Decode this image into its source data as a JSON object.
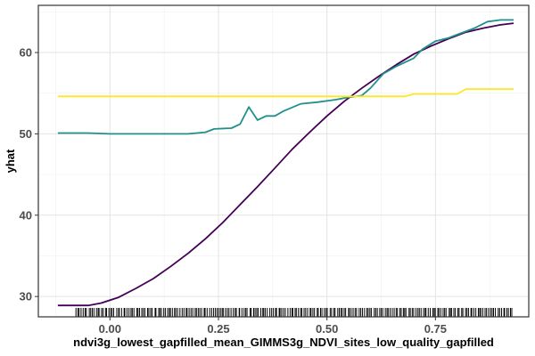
{
  "chart_data": {
    "type": "line",
    "title": "",
    "xlabel": "ndvi3g_lowest_gapfilled_mean_GIMMS3g_NDVI_sites_low_quality_gapfilled",
    "ylabel": "yhat",
    "xlim": [
      -0.165,
      0.965
    ],
    "ylim": [
      27.5,
      65.8
    ],
    "x_ticks": [
      0.0,
      0.25,
      0.5,
      0.75
    ],
    "x_tick_labels": [
      "0.00",
      "0.25",
      "0.50",
      "0.75"
    ],
    "y_ticks": [
      30,
      40,
      50,
      60
    ],
    "y_tick_labels": [
      "30",
      "40",
      "50",
      "60"
    ],
    "grid": true,
    "rug": true,
    "rug_range": [
      -0.08,
      0.93
    ],
    "series": [
      {
        "color": "#440154",
        "points": [
          [
            -0.12,
            28.9
          ],
          [
            -0.05,
            28.9
          ],
          [
            -0.02,
            29.2
          ],
          [
            0.02,
            29.9
          ],
          [
            0.06,
            31.0
          ],
          [
            0.1,
            32.2
          ],
          [
            0.14,
            33.7
          ],
          [
            0.18,
            35.3
          ],
          [
            0.22,
            37.1
          ],
          [
            0.26,
            39.1
          ],
          [
            0.3,
            41.3
          ],
          [
            0.34,
            43.5
          ],
          [
            0.38,
            45.8
          ],
          [
            0.42,
            48.1
          ],
          [
            0.46,
            50.2
          ],
          [
            0.5,
            52.2
          ],
          [
            0.54,
            54.0
          ],
          [
            0.58,
            55.6
          ],
          [
            0.62,
            57.1
          ],
          [
            0.66,
            58.5
          ],
          [
            0.7,
            59.8
          ],
          [
            0.74,
            60.8
          ],
          [
            0.78,
            61.7
          ],
          [
            0.82,
            62.5
          ],
          [
            0.86,
            63.0
          ],
          [
            0.9,
            63.4
          ],
          [
            0.93,
            63.6
          ]
        ]
      },
      {
        "color": "#21908C",
        "points": [
          [
            -0.12,
            50.1
          ],
          [
            -0.05,
            50.1
          ],
          [
            0.0,
            50.0
          ],
          [
            0.1,
            50.0
          ],
          [
            0.18,
            50.0
          ],
          [
            0.22,
            50.2
          ],
          [
            0.24,
            50.6
          ],
          [
            0.28,
            50.7
          ],
          [
            0.3,
            51.2
          ],
          [
            0.32,
            53.3
          ],
          [
            0.34,
            51.7
          ],
          [
            0.36,
            52.2
          ],
          [
            0.38,
            52.2
          ],
          [
            0.4,
            52.8
          ],
          [
            0.44,
            53.7
          ],
          [
            0.48,
            53.9
          ],
          [
            0.52,
            54.2
          ],
          [
            0.55,
            54.5
          ],
          [
            0.58,
            54.7
          ],
          [
            0.6,
            55.6
          ],
          [
            0.63,
            57.4
          ],
          [
            0.66,
            58.3
          ],
          [
            0.7,
            59.3
          ],
          [
            0.72,
            60.4
          ],
          [
            0.75,
            61.4
          ],
          [
            0.78,
            61.8
          ],
          [
            0.8,
            62.2
          ],
          [
            0.84,
            63.0
          ],
          [
            0.87,
            63.8
          ],
          [
            0.9,
            64.0
          ],
          [
            0.93,
            64.0
          ]
        ]
      },
      {
        "color": "#FDE725",
        "points": [
          [
            -0.12,
            54.6
          ],
          [
            0.62,
            54.6
          ],
          [
            0.68,
            54.6
          ],
          [
            0.7,
            54.9
          ],
          [
            0.8,
            54.9
          ],
          [
            0.82,
            55.5
          ],
          [
            0.93,
            55.5
          ]
        ]
      }
    ]
  }
}
